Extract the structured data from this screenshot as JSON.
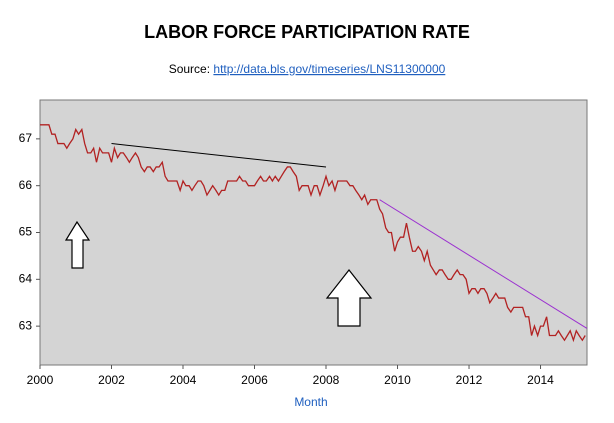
{
  "chart_data": {
    "type": "line",
    "title": "LABOR FORCE PARTICIPATION RATE",
    "source_label": "Source:",
    "source_url": "http://data.bls.gov/timeseries/LNS11300000",
    "x_label": "Month",
    "xlim": [
      2000,
      2015.3
    ],
    "xticks": [
      2000,
      2002,
      2004,
      2006,
      2008,
      2010,
      2012,
      2014
    ],
    "ylim": [
      62.17,
      67.83
    ],
    "yticks": [
      63,
      64,
      65,
      66,
      67
    ],
    "grid": false,
    "series": [
      {
        "color": "#b22222",
        "x": [
          2000.0,
          2000.08,
          2000.17,
          2000.25,
          2000.33,
          2000.42,
          2000.5,
          2000.58,
          2000.67,
          2000.75,
          2000.83,
          2000.92,
          2001.0,
          2001.08,
          2001.17,
          2001.25,
          2001.33,
          2001.42,
          2001.5,
          2001.58,
          2001.67,
          2001.75,
          2001.83,
          2001.92,
          2002.0,
          2002.08,
          2002.17,
          2002.25,
          2002.33,
          2002.42,
          2002.5,
          2002.58,
          2002.67,
          2002.75,
          2002.83,
          2002.92,
          2003.0,
          2003.08,
          2003.17,
          2003.25,
          2003.33,
          2003.42,
          2003.5,
          2003.58,
          2003.67,
          2003.75,
          2003.83,
          2003.92,
          2004.0,
          2004.08,
          2004.17,
          2004.25,
          2004.33,
          2004.42,
          2004.5,
          2004.58,
          2004.67,
          2004.75,
          2004.83,
          2004.92,
          2005.0,
          2005.08,
          2005.17,
          2005.25,
          2005.33,
          2005.42,
          2005.5,
          2005.58,
          2005.67,
          2005.75,
          2005.83,
          2005.92,
          2006.0,
          2006.08,
          2006.17,
          2006.25,
          2006.33,
          2006.42,
          2006.5,
          2006.58,
          2006.67,
          2006.75,
          2006.83,
          2006.92,
          2007.0,
          2007.08,
          2007.17,
          2007.25,
          2007.33,
          2007.42,
          2007.5,
          2007.58,
          2007.67,
          2007.75,
          2007.83,
          2007.92,
          2008.0,
          2008.08,
          2008.17,
          2008.25,
          2008.33,
          2008.42,
          2008.5,
          2008.58,
          2008.67,
          2008.75,
          2008.83,
          2008.92,
          2009.0,
          2009.08,
          2009.17,
          2009.25,
          2009.33,
          2009.42,
          2009.5,
          2009.58,
          2009.67,
          2009.75,
          2009.83,
          2009.92,
          2010.0,
          2010.08,
          2010.17,
          2010.25,
          2010.33,
          2010.42,
          2010.5,
          2010.58,
          2010.67,
          2010.75,
          2010.83,
          2010.92,
          2011.0,
          2011.08,
          2011.17,
          2011.25,
          2011.33,
          2011.42,
          2011.5,
          2011.58,
          2011.67,
          2011.75,
          2011.83,
          2011.92,
          2012.0,
          2012.08,
          2012.17,
          2012.25,
          2012.33,
          2012.42,
          2012.5,
          2012.58,
          2012.67,
          2012.75,
          2012.83,
          2012.92,
          2013.0,
          2013.08,
          2013.17,
          2013.25,
          2013.33,
          2013.42,
          2013.5,
          2013.58,
          2013.67,
          2013.75,
          2013.83,
          2013.92,
          2014.0,
          2014.08,
          2014.17,
          2014.25,
          2014.33,
          2014.42,
          2014.5,
          2014.58,
          2014.67,
          2014.75,
          2014.83,
          2014.92,
          2015.0,
          2015.08,
          2015.17,
          2015.25
        ],
        "values": [
          67.3,
          67.3,
          67.3,
          67.3,
          67.1,
          67.1,
          66.9,
          66.9,
          66.9,
          66.8,
          66.9,
          67.0,
          67.2,
          67.1,
          67.2,
          66.9,
          66.7,
          66.7,
          66.8,
          66.5,
          66.8,
          66.7,
          66.7,
          66.7,
          66.5,
          66.8,
          66.6,
          66.7,
          66.7,
          66.6,
          66.5,
          66.6,
          66.7,
          66.6,
          66.4,
          66.3,
          66.4,
          66.4,
          66.3,
          66.4,
          66.4,
          66.5,
          66.2,
          66.1,
          66.1,
          66.1,
          66.1,
          65.9,
          66.1,
          66.0,
          66.0,
          65.9,
          66.0,
          66.1,
          66.1,
          66.0,
          65.8,
          65.9,
          66.0,
          65.9,
          65.8,
          65.9,
          65.9,
          66.1,
          66.1,
          66.1,
          66.1,
          66.2,
          66.1,
          66.1,
          66.0,
          66.0,
          66.0,
          66.1,
          66.2,
          66.1,
          66.1,
          66.2,
          66.1,
          66.2,
          66.1,
          66.2,
          66.3,
          66.4,
          66.4,
          66.3,
          66.2,
          65.9,
          66.0,
          66.0,
          66.0,
          65.8,
          66.0,
          66.0,
          65.8,
          66.0,
          66.2,
          66.0,
          66.1,
          65.9,
          66.1,
          66.1,
          66.1,
          66.1,
          66.0,
          66.0,
          65.9,
          65.8,
          65.7,
          65.8,
          65.6,
          65.7,
          65.7,
          65.7,
          65.5,
          65.4,
          65.1,
          65.0,
          65.0,
          64.6,
          64.8,
          64.9,
          64.9,
          65.2,
          64.9,
          64.6,
          64.6,
          64.7,
          64.6,
          64.4,
          64.6,
          64.3,
          64.2,
          64.1,
          64.2,
          64.2,
          64.1,
          64.0,
          64.0,
          64.1,
          64.2,
          64.1,
          64.1,
          64.0,
          63.7,
          63.8,
          63.8,
          63.7,
          63.8,
          63.8,
          63.7,
          63.5,
          63.6,
          63.7,
          63.6,
          63.6,
          63.6,
          63.4,
          63.3,
          63.4,
          63.4,
          63.4,
          63.4,
          63.2,
          63.2,
          62.8,
          63.0,
          62.8,
          63.0,
          63.0,
          63.2,
          62.8,
          62.8,
          62.8,
          62.9,
          62.8,
          62.7,
          62.8,
          62.9,
          62.7,
          62.9,
          62.8,
          62.7,
          62.8
        ]
      }
    ],
    "trend_lines": [
      {
        "color": "#000000",
        "x": [
          2002.0,
          2008.0
        ],
        "values": [
          66.9,
          66.4
        ]
      },
      {
        "color": "#9b30d0",
        "x": [
          2009.5,
          2015.3
        ],
        "values": [
          65.7,
          62.95
        ]
      }
    ]
  }
}
